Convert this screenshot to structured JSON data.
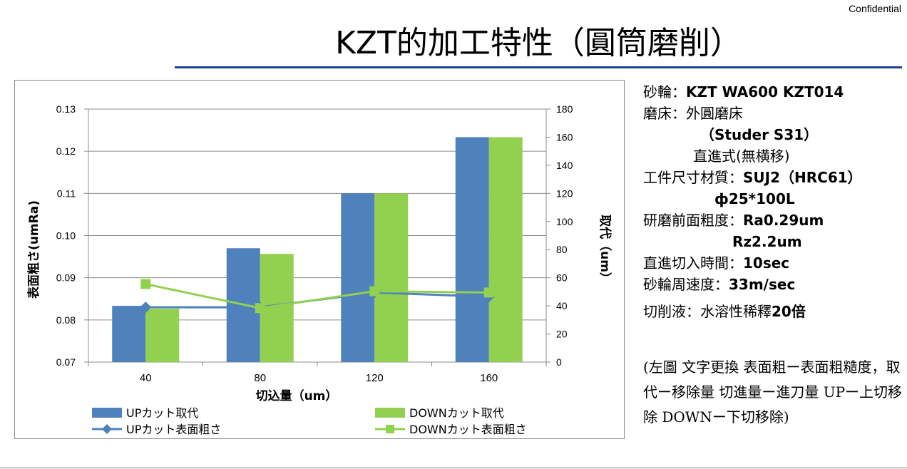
{
  "header": {
    "confidential": "Confidential",
    "title": "KZT的加工特性（圓筒磨削）"
  },
  "chart_data": {
    "type": "bar",
    "categories": [
      "40",
      "80",
      "120",
      "160"
    ],
    "xlabel": "切込量（um）",
    "ylabel_left": "表面粗さ(umRa)",
    "ylabel_right": "取代（um）",
    "y_left_ticks": [
      "0.13",
      "0.12",
      "0.11",
      "0.10",
      "0.09",
      "0.08",
      "0.07"
    ],
    "y_right_ticks": [
      "180",
      "160",
      "140",
      "120",
      "100",
      "80",
      "60",
      "40",
      "20",
      "0"
    ],
    "ylim_left": [
      0.07,
      0.13
    ],
    "ylim_right": [
      0,
      180
    ],
    "grid": true,
    "legend_position": "bottom",
    "series": [
      {
        "name": "UPカット取代",
        "kind": "bar",
        "axis": "right",
        "color": "#4f81bd",
        "values": [
          40,
          81,
          120,
          160
        ]
      },
      {
        "name": "DOWNカット取代",
        "kind": "bar",
        "axis": "right",
        "color": "#92d050",
        "values": [
          38,
          77,
          120,
          160
        ]
      },
      {
        "name": "UPカット表面粗さ",
        "kind": "line",
        "axis": "left",
        "marker": "diamond",
        "color": "#4f81bd",
        "values": [
          0.083,
          0.083,
          0.0865,
          0.0855
        ]
      },
      {
        "name": "DOWNカット表面粗さ",
        "kind": "line",
        "axis": "left",
        "marker": "square",
        "color": "#92d050",
        "values": [
          0.0885,
          0.0828,
          0.0868,
          0.0865
        ]
      }
    ]
  },
  "specs": {
    "wheel_label": "砂輪：",
    "wheel_value": "KZT WA600 KZT014",
    "machine_label": "磨床：",
    "machine_value": "外圓磨床",
    "machine_model": "（Studer S31）",
    "machine_mode": "直進式(無横移)",
    "workpiece_label": "工件尺寸材質：",
    "workpiece_value": "SUJ2（HRC61）",
    "workpiece_size": "ф25*100L",
    "pre_rough_label": "研磨前面粗度：",
    "pre_rough_ra": "Ra0.29um",
    "pre_rough_rz": "Rz2.2um",
    "plunge_time_label": "直進切入時間：",
    "plunge_time_value": "10sec",
    "wheel_speed_label": "砂輪周速度：",
    "wheel_speed_value": "33m/sec",
    "coolant_label": "切削液：水溶性稀釋",
    "coolant_value": "20倍"
  },
  "note": {
    "text": "(左圖 文字更換 表面粗ー表面粗糙度，取代ー移除量 切進量ー進刀量 UPー上切移除 DOWNー下切移除)"
  }
}
